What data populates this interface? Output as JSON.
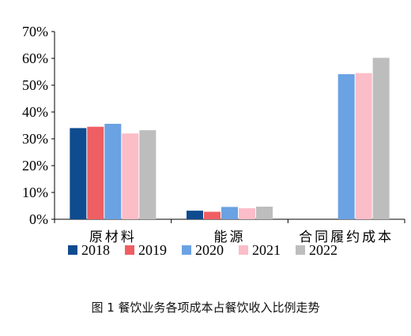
{
  "caption": "图 1 餐饮业务各项成本占餐饮收入比例走势",
  "chart_data": {
    "type": "bar",
    "title": "",
    "xlabel": "",
    "ylabel": "",
    "categories": [
      "原材料",
      "能源",
      "合同履约成本"
    ],
    "ylim": [
      0,
      70
    ],
    "yticks": [
      "0%",
      "10%",
      "20%",
      "30%",
      "40%",
      "50%",
      "60%",
      "70%"
    ],
    "grid": false,
    "legend_position": "bottom",
    "series": [
      {
        "name": "2018",
        "color": "#0f4b8f",
        "values": [
          34,
          3.2,
          null
        ]
      },
      {
        "name": "2019",
        "color": "#ef5e63",
        "values": [
          34.5,
          2.8,
          null
        ]
      },
      {
        "name": "2020",
        "color": "#6aa2e3",
        "values": [
          35.6,
          4.6,
          54.1
        ]
      },
      {
        "name": "2021",
        "color": "#fbbdc8",
        "values": [
          32,
          4.1,
          54.5
        ]
      },
      {
        "name": "2022",
        "color": "#bdbdbd",
        "values": [
          33.2,
          4.7,
          60.2
        ]
      }
    ]
  }
}
